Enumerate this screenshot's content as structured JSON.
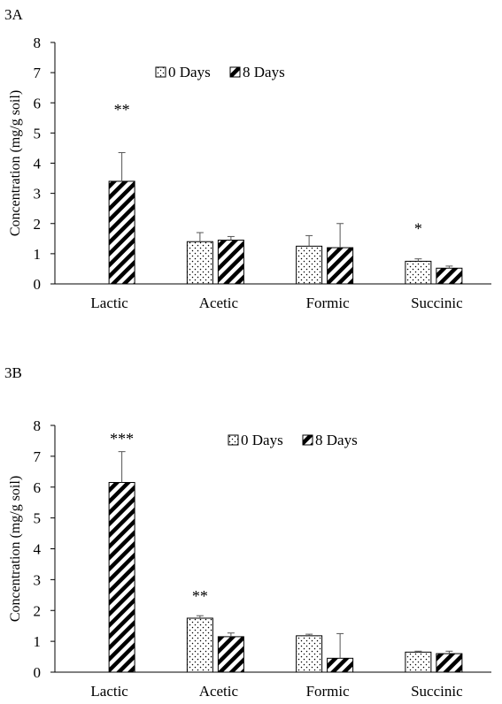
{
  "chart_data": [
    {
      "type": "bar",
      "panel_label": "3A",
      "ylabel": "Concentration (mg/g soil)",
      "xlabel": "",
      "ylim": [
        0,
        8
      ],
      "yticks": [
        "0",
        "1",
        "2",
        "3",
        "4",
        "5",
        "6",
        "7",
        "8"
      ],
      "categories": [
        "Lactic",
        "Acetic",
        "Formic",
        "Succinic"
      ],
      "legend_position": "top-center",
      "series": [
        {
          "name": "0 Days",
          "pattern": "dots",
          "values": [
            0,
            1.4,
            1.25,
            0.75
          ],
          "errors": [
            0,
            0.3,
            0.35,
            0.08
          ]
        },
        {
          "name": "8 Days",
          "pattern": "diagonal-stripes",
          "values": [
            3.4,
            1.45,
            1.2,
            0.52
          ],
          "errors": [
            0.95,
            0.12,
            0.8,
            0.07
          ]
        }
      ],
      "annotations": [
        {
          "category": "Lactic",
          "text": "**",
          "value": 5.6
        },
        {
          "category": "Succinic",
          "text": "*",
          "value": 1.65
        }
      ]
    },
    {
      "type": "bar",
      "panel_label": "3B",
      "ylabel": "Concentration (mg/g soil)",
      "xlabel": "",
      "ylim": [
        0,
        8
      ],
      "yticks": [
        "0",
        "1",
        "2",
        "3",
        "4",
        "5",
        "6",
        "7",
        "8"
      ],
      "categories": [
        "Lactic",
        "Acetic",
        "Formic",
        "Succinic"
      ],
      "legend_position": "top-center",
      "series": [
        {
          "name": "0 Days",
          "pattern": "dots",
          "values": [
            0,
            1.75,
            1.18,
            0.65
          ],
          "errors": [
            0,
            0.08,
            0.05,
            0.03
          ]
        },
        {
          "name": "8 Days",
          "pattern": "diagonal-stripes",
          "values": [
            6.15,
            1.15,
            0.45,
            0.6
          ],
          "errors": [
            1.0,
            0.12,
            0.8,
            0.08
          ]
        }
      ],
      "annotations": [
        {
          "category": "Lactic",
          "text": "***",
          "value": 7.4
        },
        {
          "category": "Acetic",
          "text": "**",
          "value": 2.3
        }
      ]
    }
  ]
}
